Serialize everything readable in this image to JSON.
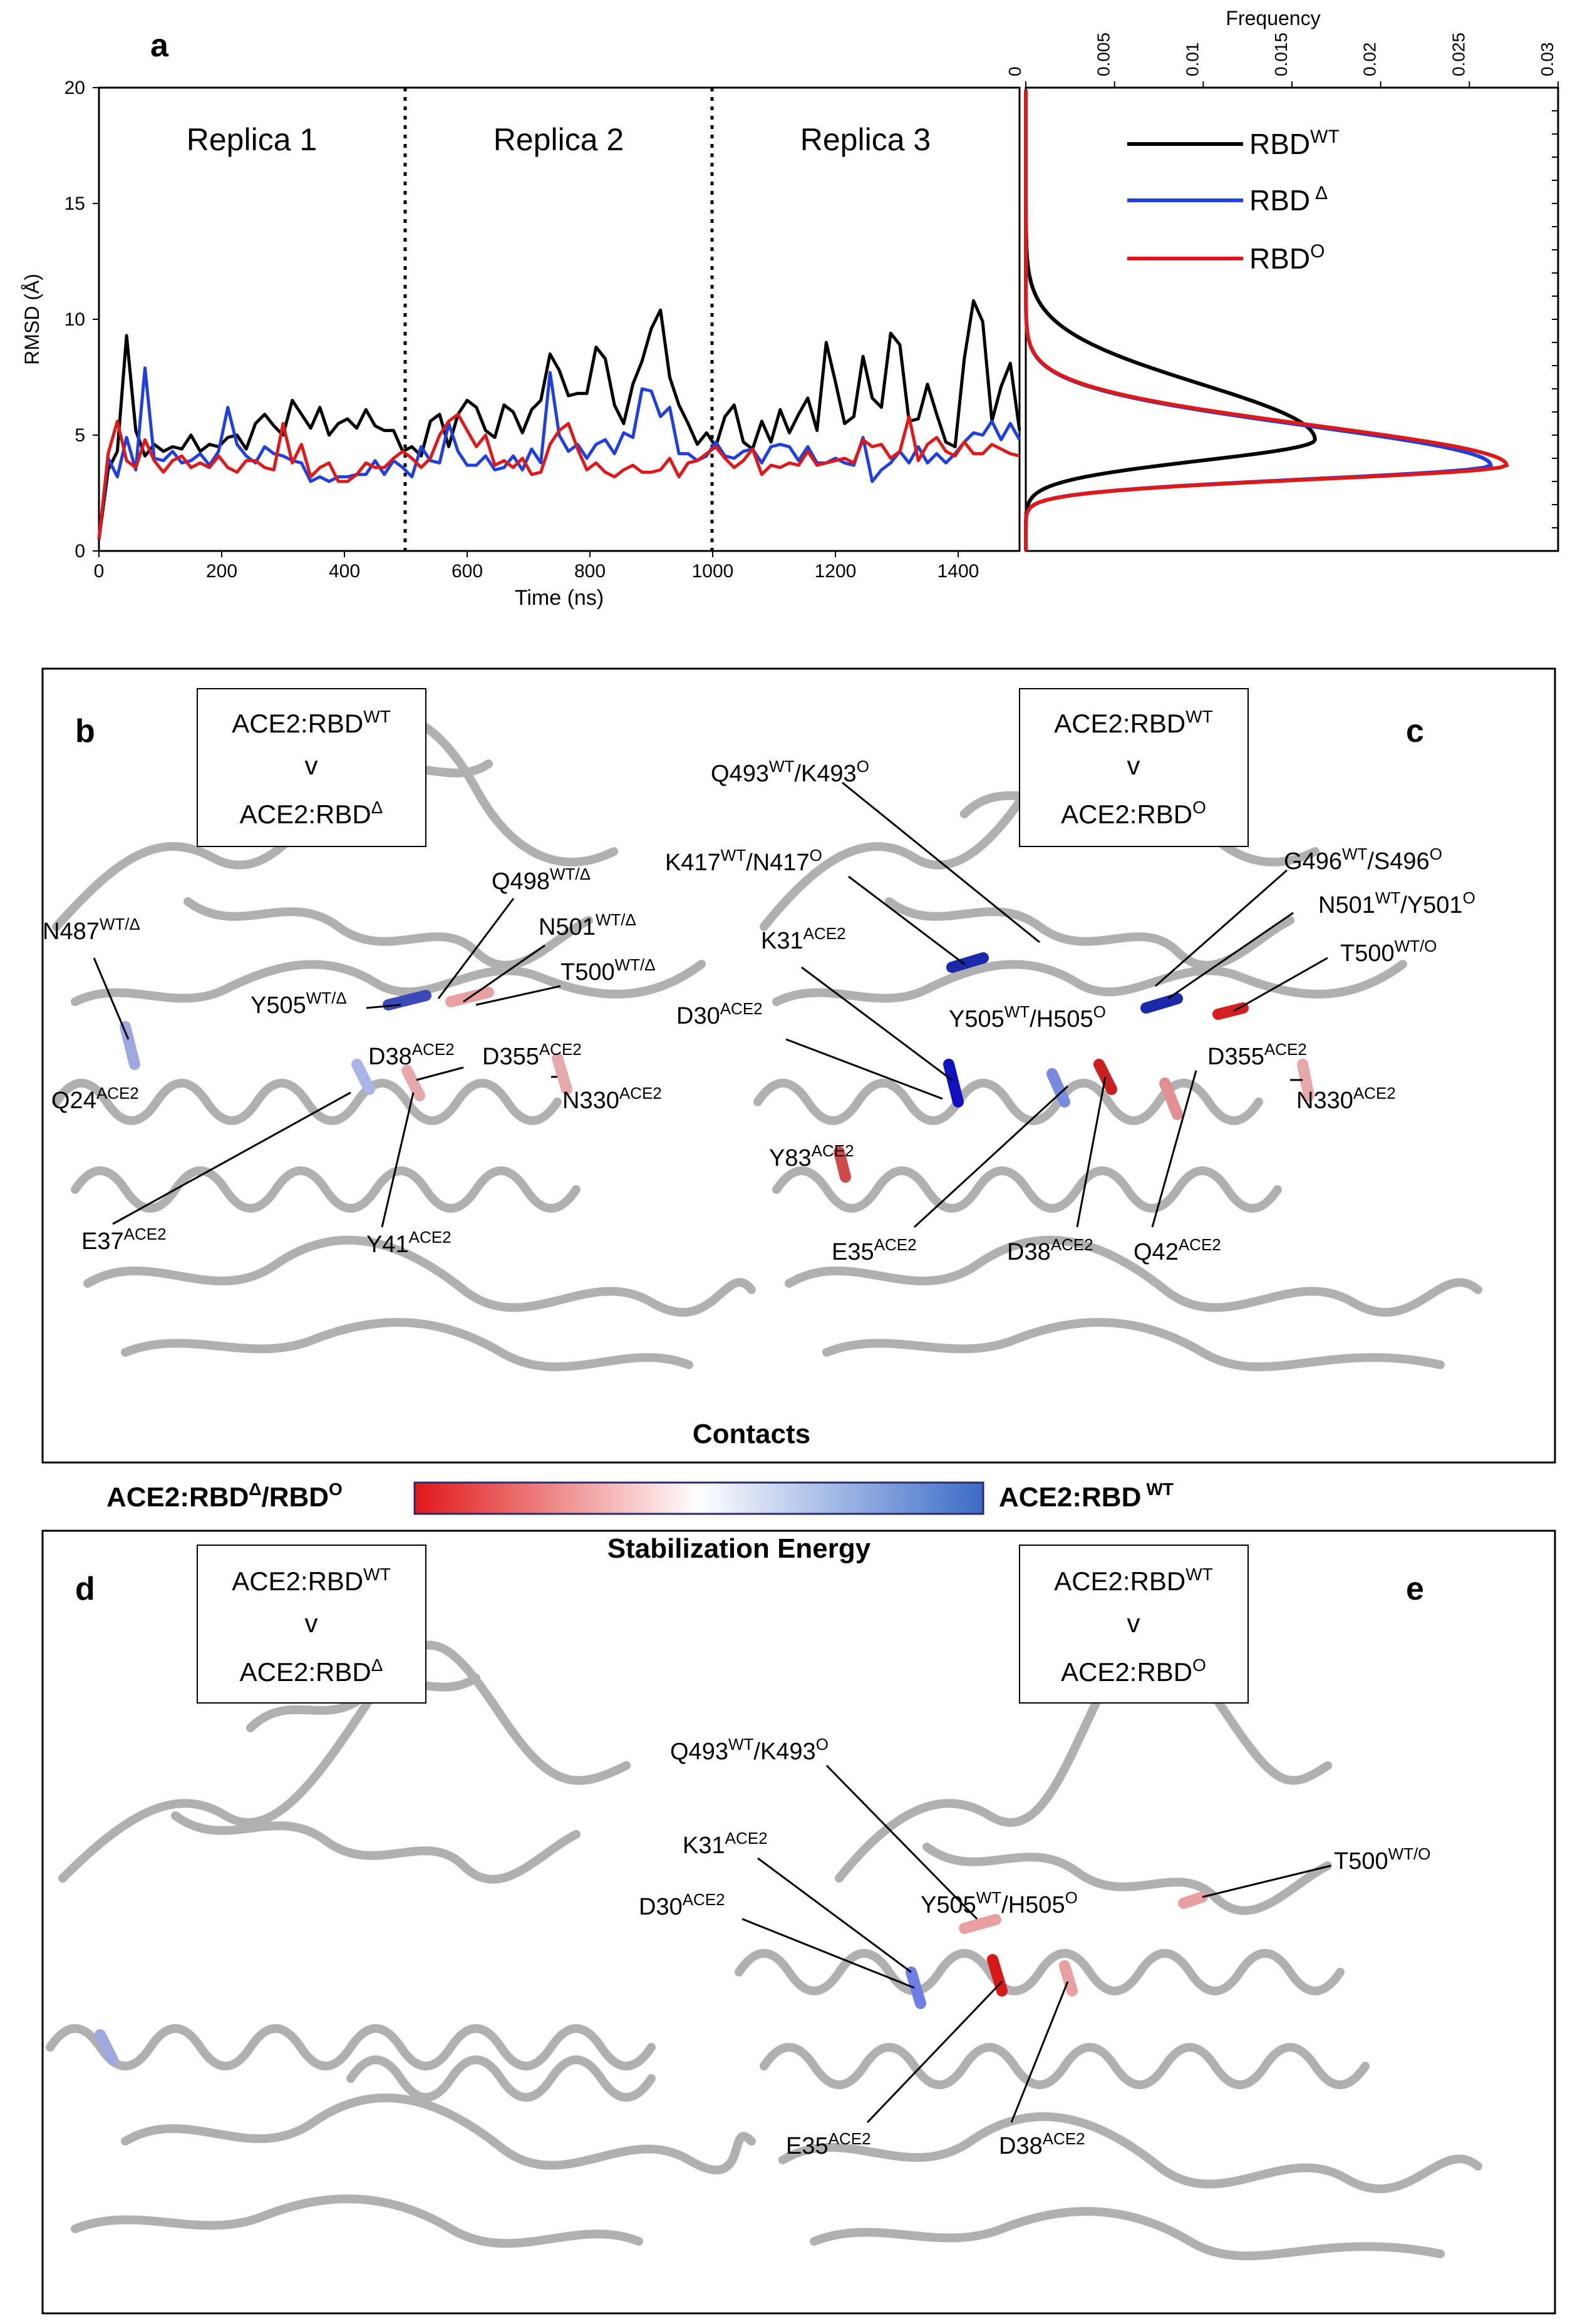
{
  "panel_a": {
    "letter": "a",
    "replica_labels": [
      "Replica 1",
      "Replica 2",
      "Replica 3"
    ],
    "ylabel": "RMSD (Å)",
    "xlabel": "Time (ns)",
    "freq_label": "Frequency",
    "x_ticks": [
      "0",
      "200",
      "400",
      "600",
      "800",
      "1000",
      "1200",
      "1400"
    ],
    "y_ticks": [
      "0",
      "5",
      "10",
      "15",
      "20"
    ],
    "freq_ticks": [
      "0",
      "0.005",
      "0.01",
      "0.015",
      "0.02",
      "0.025",
      "0.03"
    ],
    "legend": [
      {
        "base": "RBD",
        "sup": "WT"
      },
      {
        "base": "RBD",
        "sup": "Δ"
      },
      {
        "base": "RBD",
        "sup": "O"
      }
    ]
  },
  "colors": {
    "wt": "#000000",
    "delta": "#1f3fe0",
    "omicron": "#e01818",
    "scale_red": "#e01818",
    "scale_blue": "#3c6cc8"
  },
  "chart_data": [
    {
      "type": "line",
      "title": "",
      "xlabel": "Time (ns)",
      "ylabel": "RMSD (Å)",
      "xlim": [
        0,
        1500
      ],
      "ylim": [
        0,
        20
      ],
      "grid": false,
      "x": [
        0,
        15,
        30,
        45,
        60,
        75,
        90,
        105,
        120,
        135,
        150,
        165,
        180,
        195,
        210,
        225,
        240,
        255,
        270,
        285,
        300,
        315,
        330,
        345,
        360,
        375,
        390,
        405,
        420,
        435,
        450,
        465,
        480,
        495,
        510,
        525,
        540,
        555,
        570,
        585,
        600,
        615,
        630,
        645,
        660,
        675,
        690,
        705,
        720,
        735,
        750,
        765,
        780,
        795,
        810,
        825,
        840,
        855,
        870,
        885,
        900,
        915,
        930,
        945,
        960,
        975,
        990,
        1005,
        1020,
        1035,
        1050,
        1065,
        1080,
        1095,
        1110,
        1125,
        1140,
        1155,
        1170,
        1185,
        1200,
        1215,
        1230,
        1245,
        1260,
        1275,
        1290,
        1305,
        1320,
        1335,
        1350,
        1365,
        1380,
        1395,
        1410,
        1425,
        1440,
        1455,
        1470,
        1485,
        1500
      ],
      "series": [
        {
          "name": "RBD WT",
          "values": [
            0.5,
            3.5,
            4.3,
            9.3,
            5.2,
            4.1,
            4.6,
            4.3,
            4.5,
            4.4,
            5.0,
            4.3,
            4.6,
            4.5,
            4.9,
            5.0,
            4.4,
            5.5,
            5.9,
            5.4,
            5.0,
            6.5,
            5.9,
            5.3,
            6.2,
            5.0,
            5.5,
            5.7,
            5.3,
            6.1,
            5.4,
            5.2,
            5.2,
            4.3,
            4.5,
            4.1,
            5.6,
            5.9,
            4.5,
            5.9,
            6.5,
            6.2,
            5.2,
            4.9,
            6.3,
            6.0,
            5.1,
            6.1,
            6.5,
            8.5,
            7.8,
            6.7,
            6.8,
            6.8,
            8.8,
            8.3,
            6.3,
            5.5,
            7.2,
            8.2,
            9.6,
            10.4,
            7.5,
            6.3,
            5.5,
            4.6,
            5.1,
            4.5,
            5.8,
            6.3,
            4.7,
            4.4,
            5.6,
            4.7,
            6.1,
            5.1,
            5.9,
            6.6,
            5.2,
            9.0,
            7.3,
            5.5,
            5.8,
            8.4,
            6.6,
            6.2,
            9.4,
            8.9,
            5.6,
            5.7,
            7.2,
            5.9,
            4.7,
            4.5,
            8.3,
            10.8,
            9.9,
            5.6,
            7.1,
            8.1,
            5.2
          ]
        },
        {
          "name": "RBD Δ",
          "values": [
            0.5,
            4.0,
            3.2,
            4.9,
            3.5,
            7.9,
            4.0,
            3.9,
            4.3,
            3.8,
            3.9,
            4.2,
            3.7,
            4.3,
            6.2,
            4.6,
            4.1,
            3.8,
            4.5,
            4.2,
            4.1,
            3.9,
            3.8,
            3.0,
            3.2,
            3.0,
            3.2,
            3.2,
            3.3,
            3.3,
            3.9,
            3.3,
            3.9,
            3.6,
            3.2,
            4.5,
            3.9,
            3.8,
            5.5,
            4.3,
            3.7,
            3.7,
            4.1,
            3.5,
            3.6,
            4.1,
            3.5,
            4.4,
            3.8,
            7.7,
            5.0,
            4.3,
            4.6,
            4.0,
            4.6,
            4.8,
            4.2,
            5.1,
            4.9,
            7.0,
            6.9,
            5.8,
            6.2,
            4.2,
            4.2,
            3.9,
            4.1,
            4.7,
            4.1,
            4.0,
            4.3,
            4.4,
            3.8,
            4.5,
            4.6,
            4.5,
            3.9,
            4.5,
            3.8,
            3.8,
            4.0,
            3.8,
            3.7,
            4.9,
            3.0,
            3.5,
            3.8,
            4.3,
            3.8,
            4.5,
            3.8,
            4.2,
            3.8,
            4.2,
            4.7,
            5.1,
            5.0,
            5.6,
            4.8,
            5.5,
            4.8
          ]
        },
        {
          "name": "RBD O",
          "values": [
            0.5,
            4.2,
            5.6,
            3.9,
            3.6,
            4.8,
            3.9,
            3.4,
            3.9,
            4.1,
            3.6,
            3.8,
            3.6,
            4.1,
            3.6,
            3.4,
            3.9,
            3.9,
            3.6,
            3.5,
            5.5,
            3.8,
            4.6,
            3.2,
            3.6,
            3.8,
            3.0,
            3.0,
            3.3,
            3.8,
            3.6,
            3.6,
            4.0,
            4.3,
            4.0,
            3.6,
            4.0,
            5.0,
            5.6,
            5.9,
            5.2,
            4.5,
            5.0,
            3.7,
            3.9,
            3.6,
            4.0,
            3.3,
            3.4,
            4.6,
            5.2,
            5.5,
            4.4,
            3.5,
            3.8,
            3.4,
            3.2,
            3.5,
            3.7,
            3.4,
            3.4,
            3.5,
            4.0,
            3.2,
            3.8,
            3.9,
            4.2,
            4.5,
            4.0,
            3.6,
            3.9,
            4.4,
            3.3,
            3.7,
            3.6,
            3.8,
            3.7,
            4.3,
            3.7,
            3.8,
            3.9,
            4.0,
            3.8,
            4.8,
            4.5,
            4.6,
            4.0,
            4.3,
            5.8,
            3.9,
            4.6,
            4.9,
            4.3,
            4.1,
            4.7,
            4.2,
            4.2,
            4.6,
            4.4,
            4.2,
            4.1
          ]
        }
      ]
    },
    {
      "type": "line",
      "title": "",
      "xlabel": "Frequency",
      "ylabel": "",
      "xlim": [
        0,
        0.03
      ],
      "ylim": [
        0,
        20
      ],
      "grid": false,
      "series": [
        {
          "name": "RBD WT",
          "mean": 4.8,
          "peak": 0.0163
        },
        {
          "name": "RBD Δ",
          "mean": 3.7,
          "peak": 0.0262
        },
        {
          "name": "RBD O",
          "mean": 3.7,
          "peak": 0.0271
        }
      ]
    }
  ],
  "panel_bc": {
    "letter_b": "b",
    "letter_c": "c",
    "box_b": {
      "line1_base": "ACE2:RBD",
      "line1_sup": "WT",
      "v": "v",
      "line2_base": "ACE2:RBD",
      "line2_sup": "Δ"
    },
    "box_c": {
      "line1_base": "ACE2:RBD",
      "line1_sup": "WT",
      "v": "v",
      "line2_base": "ACE2:RBD",
      "line2_sup": "O"
    },
    "labels_b": [
      {
        "base": "Q498",
        "sup": "WT/Δ"
      },
      {
        "base": "N501",
        "sup": "WT/Δ"
      },
      {
        "base": "N487",
        "sup": "WT/Δ"
      },
      {
        "base": "T500",
        "sup": "WT/Δ"
      },
      {
        "base": "Y505",
        "sup": "WT/Δ"
      },
      {
        "base": "D38",
        "sup": "ACE2"
      },
      {
        "base": "D355",
        "sup": "ACE2"
      },
      {
        "base": "N330",
        "sup": "ACE2"
      },
      {
        "base": "Q24",
        "sup": "ACE2"
      },
      {
        "base": "E37",
        "sup": "ACE2"
      },
      {
        "base": "Y41",
        "sup": "ACE2"
      }
    ],
    "labels_c": [
      {
        "base": "Q493",
        "sup": "WT",
        "base2": "/K493",
        "sup2": "O"
      },
      {
        "base": "K417",
        "sup": "WT",
        "base2": "/N417",
        "sup2": "O"
      },
      {
        "base": "G496",
        "sup": "WT",
        "base2": "/S496",
        "sup2": "O"
      },
      {
        "base": "N501",
        "sup": "WT",
        "base2": "/Y501",
        "sup2": "O"
      },
      {
        "base": "K31",
        "sup": "ACE2"
      },
      {
        "base": "T500",
        "sup": "WT/O"
      },
      {
        "base": "D30",
        "sup": "ACE2"
      },
      {
        "base": "Y505",
        "sup": "WT",
        "base2": "/H505",
        "sup2": "O"
      },
      {
        "base": "D355",
        "sup": "ACE2"
      },
      {
        "base": "N330",
        "sup": "ACE2"
      },
      {
        "base": "Y83",
        "sup": "ACE2"
      },
      {
        "base": "E35",
        "sup": "ACE2"
      },
      {
        "base": "D38",
        "sup": "ACE2"
      },
      {
        "base": "Q42",
        "sup": "ACE2"
      }
    ],
    "caption": "Contacts"
  },
  "scale": {
    "left_base": "ACE2:RBD",
    "left_sup": "Δ",
    "left_mid": "/RBD",
    "left_sup2": "O",
    "right_base": "ACE2:RBD",
    "right_sup": "WT"
  },
  "panel_de": {
    "caption": "Stabilization Energy",
    "letter_d": "d",
    "letter_e": "e",
    "box_d": {
      "line1_base": "ACE2:RBD",
      "line1_sup": "WT",
      "v": "v",
      "line2_base": "ACE2:RBD",
      "line2_sup": "Δ"
    },
    "box_e": {
      "line1_base": "ACE2:RBD",
      "line1_sup": "WT",
      "v": "v",
      "line2_base": "ACE2:RBD",
      "line2_sup": "O"
    },
    "labels_e": [
      {
        "base": "Q493",
        "sup": "WT",
        "base2": "/K493",
        "sup2": "O"
      },
      {
        "base": "K31",
        "sup": "ACE2"
      },
      {
        "base": "T500",
        "sup": "WT/O"
      },
      {
        "base": "D30",
        "sup": "ACE2"
      },
      {
        "base": "Y505",
        "sup": "WT",
        "base2": "/H505",
        "sup2": "O"
      },
      {
        "base": "E35",
        "sup": "ACE2"
      },
      {
        "base": "D38",
        "sup": "ACE2"
      }
    ]
  }
}
